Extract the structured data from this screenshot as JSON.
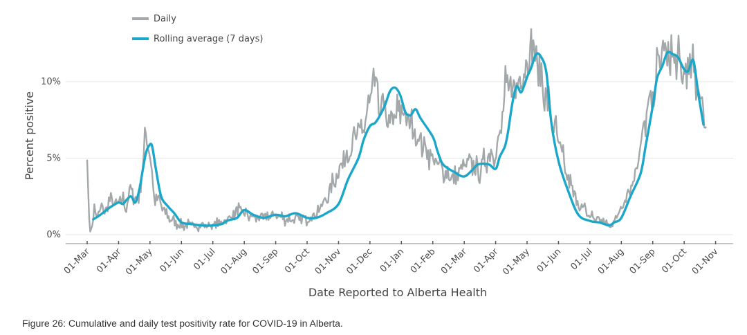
{
  "caption": "Figure 26: Cumulative and daily test positivity rate for COVID-19 in Alberta.",
  "chart_data": {
    "type": "line",
    "title": "",
    "xlabel": "Date Reported to Alberta Health",
    "ylabel": "Percent positive",
    "x_tick_labels": [
      "01-Mar",
      "01-Apr",
      "01-May",
      "01-Jun",
      "01-Jul",
      "01-Aug",
      "01-Sep",
      "01-Oct",
      "01-Nov",
      "01-Dec",
      "01-Jan",
      "01-Feb",
      "01-Mar",
      "01-Apr",
      "01-May",
      "01-Jun",
      "01-Jul",
      "01-Aug",
      "01-Sep",
      "01-Oct",
      "01-Nov"
    ],
    "y_ticks": [
      0,
      5,
      10
    ],
    "y_tick_labels": [
      "0%",
      "5%",
      "10%"
    ],
    "ylim": [
      -0.6,
      14.8
    ],
    "grid": "horizontal",
    "legend_position": "top-left",
    "colors": {
      "daily": "#a3a8ab",
      "rolling": "#1aa7c9",
      "grid": "#e6e6e6",
      "axis": "#888888"
    },
    "daily_keypoints": {
      "x": [
        "01-Mar",
        "03-Mar",
        "05-Mar",
        "08-Mar",
        "11-Mar",
        "15-Mar",
        "20-Mar",
        "25-Mar",
        "28-Mar",
        "01-Apr",
        "05-Apr",
        "08-Apr",
        "12-Apr",
        "15-Apr",
        "20-Apr",
        "23-Apr",
        "25-Apr",
        "27-Apr",
        "29-Apr",
        "02-May",
        "05-May",
        "10-May",
        "15-May",
        "20-May",
        "25-May",
        "01-Jun",
        "10-Jun",
        "20-Jun",
        "01-Jul",
        "10-Jul",
        "15-Jul",
        "20-Jul",
        "25-Jul",
        "01-Aug",
        "10-Aug",
        "20-Aug",
        "01-Sep",
        "10-Sep",
        "20-Sep",
        "01-Oct",
        "10-Oct",
        "20-Oct",
        "01-Nov",
        "10-Nov",
        "20-Nov",
        "25-Nov",
        "01-Dec",
        "05-Dec",
        "10-Dec",
        "15-Dec",
        "20-Dec",
        "25-Dec",
        "31-Dec",
        "03-Jan",
        "10-Jan",
        "20-Jan",
        "01-Feb",
        "10-Feb",
        "20-Feb",
        "01-Mar",
        "10-Mar",
        "15-Mar",
        "25-Mar",
        "01-Apr",
        "05-Apr",
        "10-Apr",
        "15-Apr",
        "20-Apr",
        "25-Apr",
        "01-May",
        "05-May",
        "10-May",
        "20-May",
        "01-Jun",
        "10-Jun",
        "20-Jun",
        "01-Jul",
        "10-Jul",
        "15-Jul",
        "20-Jul",
        "25-Jul",
        "01-Aug",
        "10-Aug",
        "20-Aug",
        "25-Aug",
        "01-Sep",
        "05-Sep",
        "10-Sep",
        "15-Sep",
        "20-Sep",
        "25-Sep",
        "01-Oct",
        "05-Oct",
        "10-Oct",
        "15-Oct",
        "20-Oct",
        "23-Oct"
      ],
      "y": [
        4.9,
        1.0,
        0.2,
        1.6,
        1.2,
        1.7,
        1.6,
        2.5,
        1.8,
        2.1,
        2.3,
        1.7,
        2.9,
        2.6,
        2.2,
        4.0,
        5.0,
        6.6,
        6.2,
        4.7,
        2.4,
        2.2,
        1.5,
        1.1,
        0.8,
        0.6,
        0.6,
        0.6,
        0.6,
        0.8,
        1.0,
        1.2,
        1.6,
        1.4,
        1.1,
        1.1,
        1.3,
        1.0,
        1.0,
        1.0,
        1.4,
        2.3,
        4.2,
        5.4,
        6.6,
        7.0,
        8.5,
        10.0,
        8.6,
        8.0,
        7.3,
        7.5,
        8.2,
        8.0,
        7.1,
        6.1,
        4.9,
        4.2,
        3.6,
        4.5,
        4.6,
        4.0,
        5.2,
        5.5,
        6.2,
        9.3,
        9.7,
        9.6,
        10.5,
        11.2,
        12.5,
        11.4,
        8.9,
        6.0,
        3.6,
        2.0,
        1.2,
        1.0,
        0.8,
        0.6,
        0.8,
        1.9,
        3.0,
        5.5,
        7.6,
        8.9,
        10.6,
        12.1,
        11.5,
        11.6,
        11.1,
        10.3,
        10.8,
        10.6,
        9.6,
        8.1,
        6.8
      ]
    },
    "rolling_keypoints": {
      "x": [
        "07-Mar",
        "12-Mar",
        "18-Mar",
        "24-Mar",
        "01-Apr",
        "05-Apr",
        "09-Apr",
        "13-Apr",
        "17-Apr",
        "21-Apr",
        "24-Apr",
        "27-Apr",
        "30-Apr",
        "03-May",
        "07-May",
        "12-May",
        "18-May",
        "25-May",
        "01-Jun",
        "10-Jun",
        "20-Jun",
        "01-Jul",
        "10-Jul",
        "15-Jul",
        "20-Jul",
        "25-Jul",
        "01-Aug",
        "10-Aug",
        "20-Aug",
        "01-Sep",
        "10-Sep",
        "20-Sep",
        "01-Oct",
        "10-Oct",
        "20-Oct",
        "01-Nov",
        "10-Nov",
        "20-Nov",
        "25-Nov",
        "01-Dec",
        "06-Dec",
        "11-Dec",
        "16-Dec",
        "21-Dec",
        "26-Dec",
        "31-Dec",
        "05-Jan",
        "10-Jan",
        "15-Jan",
        "20-Jan",
        "01-Feb",
        "05-Feb",
        "10-Feb",
        "20-Feb",
        "01-Mar",
        "10-Mar",
        "15-Mar",
        "25-Mar",
        "01-Apr",
        "05-Apr",
        "10-Apr",
        "13-Apr",
        "17-Apr",
        "21-Apr",
        "25-Apr",
        "28-Apr",
        "01-May",
        "05-May",
        "10-May",
        "15-May",
        "20-May",
        "25-May",
        "01-Jun",
        "10-Jun",
        "20-Jun",
        "01-Jul",
        "10-Jul",
        "15-Jul",
        "20-Jul",
        "25-Jul",
        "01-Aug",
        "10-Aug",
        "20-Aug",
        "25-Aug",
        "01-Sep",
        "05-Sep",
        "10-Sep",
        "15-Sep",
        "20-Sep",
        "25-Sep",
        "01-Oct",
        "05-Oct",
        "10-Oct",
        "15-Oct",
        "20-Oct"
      ],
      "y": [
        1.0,
        1.2,
        1.5,
        1.8,
        2.1,
        2.0,
        2.3,
        2.5,
        2.1,
        3.0,
        4.2,
        5.3,
        5.8,
        5.8,
        4.2,
        2.5,
        1.9,
        1.4,
        0.8,
        0.7,
        0.6,
        0.6,
        0.7,
        0.9,
        1.0,
        1.1,
        1.6,
        1.3,
        1.1,
        1.3,
        1.2,
        1.4,
        1.1,
        1.1,
        1.4,
        2.0,
        3.6,
        5.0,
        6.2,
        7.1,
        7.3,
        7.8,
        8.5,
        9.4,
        9.6,
        9.1,
        8.0,
        7.8,
        8.2,
        7.6,
        6.4,
        5.5,
        4.6,
        4.1,
        3.8,
        4.3,
        4.6,
        4.6,
        4.3,
        5.1,
        5.8,
        6.8,
        8.6,
        9.7,
        9.3,
        9.7,
        10.3,
        10.9,
        11.8,
        11.6,
        10.6,
        7.3,
        4.8,
        2.9,
        1.3,
        0.9,
        0.8,
        0.7,
        0.6,
        0.8,
        1.1,
        2.5,
        4.0,
        5.8,
        8.4,
        10.2,
        11.0,
        11.9,
        11.8,
        11.6,
        10.8,
        10.7,
        11.4,
        9.2,
        7.2
      ]
    }
  },
  "legend": [
    {
      "label": "Daily",
      "series": "daily"
    },
    {
      "label": "Rolling average (7 days)",
      "series": "rolling"
    }
  ]
}
